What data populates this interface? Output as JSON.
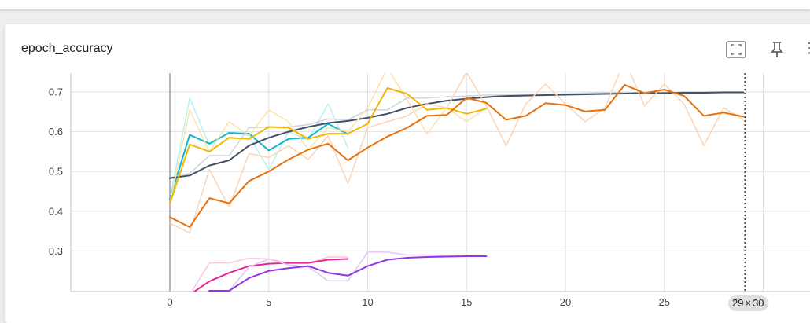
{
  "card": {
    "title": "epoch_accuracy",
    "fullscreen_icon": "fit-screen-icon",
    "pin_icon": "pin-icon",
    "more_icon": "more-vert-icon"
  },
  "hover": {
    "step": "29",
    "times": "×",
    "range_end": "30"
  },
  "chart_data": {
    "type": "line",
    "title": "epoch_accuracy",
    "xlabel": "",
    "ylabel": "",
    "xlim": [
      -5,
      31
    ],
    "ylim": [
      0.2,
      0.75
    ],
    "x_ticks": [
      0,
      5,
      10,
      15,
      20,
      25,
      30
    ],
    "y_ticks": [
      0.3,
      0.4,
      0.5,
      0.6,
      0.7
    ],
    "grid": true,
    "legend": "none",
    "hover_step": 29,
    "series": [
      {
        "color": "#b8f0f5",
        "width": 1.5,
        "x": [
          0,
          1,
          2,
          3,
          4,
          5,
          6,
          7,
          8,
          9
        ],
        "y": [
          0.43,
          0.685,
          0.565,
          0.6,
          0.59,
          0.505,
          0.6,
          0.58,
          0.67,
          0.56
        ]
      },
      {
        "color": "#12b5cb",
        "width": 2,
        "x": [
          0,
          1,
          2,
          3,
          4,
          5,
          6,
          7,
          8,
          9
        ],
        "y": [
          0.43,
          0.592,
          0.57,
          0.597,
          0.595,
          0.553,
          0.582,
          0.585,
          0.62,
          0.594
        ]
      },
      {
        "color": "#cfd4dc",
        "width": 1.5,
        "x": [
          0,
          1,
          2,
          3,
          4,
          5,
          6,
          7,
          8,
          9,
          10,
          11,
          12,
          13,
          14,
          15,
          16,
          17,
          18,
          19,
          20,
          21,
          22,
          23,
          24,
          25,
          26,
          27,
          28,
          29
        ],
        "y": [
          0.485,
          0.495,
          0.54,
          0.54,
          0.61,
          0.612,
          0.612,
          0.618,
          0.632,
          0.63,
          0.655,
          0.655,
          0.685,
          0.685,
          0.688,
          0.69,
          0.692,
          0.692,
          0.693,
          0.694,
          0.695,
          0.697,
          0.698,
          0.698,
          0.699,
          0.699,
          0.7,
          0.7,
          0.7,
          0.7
        ]
      },
      {
        "color": "#425066",
        "width": 2,
        "x": [
          0,
          1,
          2,
          3,
          4,
          5,
          6,
          7,
          8,
          9,
          10,
          11,
          12,
          13,
          14,
          15,
          16,
          17,
          18,
          19,
          20,
          21,
          22,
          23,
          24,
          25,
          26,
          27,
          28,
          29
        ],
        "y": [
          0.483,
          0.49,
          0.515,
          0.528,
          0.565,
          0.585,
          0.6,
          0.612,
          0.622,
          0.627,
          0.635,
          0.645,
          0.66,
          0.67,
          0.678,
          0.683,
          0.687,
          0.69,
          0.691,
          0.692,
          0.693,
          0.694,
          0.695,
          0.696,
          0.697,
          0.697,
          0.698,
          0.698,
          0.699,
          0.699
        ]
      },
      {
        "color": "#fde3a7",
        "width": 1.5,
        "x": [
          0,
          1,
          2,
          3,
          4,
          5,
          6,
          7,
          8,
          9,
          10,
          11,
          12,
          13,
          14,
          15,
          16
        ],
        "y": [
          0.42,
          0.655,
          0.55,
          0.625,
          0.59,
          0.655,
          0.625,
          0.555,
          0.61,
          0.6,
          0.66,
          0.76,
          0.68,
          0.595,
          0.66,
          0.625,
          0.66
        ]
      },
      {
        "color": "#f2b705",
        "width": 2,
        "x": [
          0,
          1,
          2,
          3,
          4,
          5,
          6,
          7,
          8,
          9,
          10,
          11,
          12,
          13,
          14,
          15,
          16
        ],
        "y": [
          0.42,
          0.568,
          0.55,
          0.585,
          0.582,
          0.612,
          0.61,
          0.582,
          0.595,
          0.595,
          0.62,
          0.71,
          0.695,
          0.655,
          0.66,
          0.645,
          0.658
        ]
      },
      {
        "color": "#fbd5b5",
        "width": 1.5,
        "x": [
          0,
          1,
          2,
          3,
          4,
          5,
          6,
          7,
          8,
          9,
          10,
          11,
          12,
          13,
          14,
          15,
          16,
          17,
          18,
          19,
          20,
          21,
          22,
          23,
          24,
          25,
          26,
          27,
          28,
          29
        ],
        "y": [
          0.37,
          0.345,
          0.505,
          0.41,
          0.545,
          0.535,
          0.565,
          0.53,
          0.59,
          0.47,
          0.61,
          0.625,
          0.64,
          0.67,
          0.66,
          0.75,
          0.665,
          0.565,
          0.67,
          0.72,
          0.67,
          0.625,
          0.66,
          0.78,
          0.665,
          0.72,
          0.67,
          0.565,
          0.66,
          0.63
        ]
      },
      {
        "color": "#e8710a",
        "width": 2,
        "x": [
          0,
          1,
          2,
          3,
          4,
          5,
          6,
          7,
          8,
          9,
          10,
          11,
          12,
          13,
          14,
          15,
          16,
          17,
          18,
          19,
          20,
          21,
          22,
          23,
          24,
          25,
          26,
          27,
          28,
          29
        ],
        "y": [
          0.385,
          0.36,
          0.433,
          0.42,
          0.476,
          0.5,
          0.53,
          0.555,
          0.57,
          0.528,
          0.56,
          0.588,
          0.61,
          0.64,
          0.642,
          0.685,
          0.673,
          0.63,
          0.64,
          0.672,
          0.667,
          0.651,
          0.655,
          0.718,
          0.697,
          0.706,
          0.69,
          0.64,
          0.648,
          0.638
        ]
      },
      {
        "color": "#f8c9e4",
        "width": 1.5,
        "x": [
          1,
          2,
          3,
          4,
          5,
          6,
          7,
          8,
          9
        ],
        "y": [
          0.19,
          0.27,
          0.27,
          0.282,
          0.28,
          0.27,
          0.27,
          0.285,
          0.285
        ]
      },
      {
        "color": "#e52592",
        "width": 2,
        "x": [
          1,
          2,
          3,
          4,
          5,
          6,
          7,
          8,
          9
        ],
        "y": [
          0.19,
          0.224,
          0.245,
          0.262,
          0.268,
          0.27,
          0.27,
          0.278,
          0.28
        ]
      },
      {
        "color": "#e0c7f5",
        "width": 1.5,
        "x": [
          1,
          2,
          3,
          4,
          5,
          6,
          7,
          8,
          9,
          10,
          11,
          12,
          13,
          14,
          15,
          16
        ],
        "y": [
          0.15,
          0.2,
          0.2,
          0.26,
          0.28,
          0.265,
          0.26,
          0.225,
          0.225,
          0.297,
          0.297,
          0.29,
          0.29,
          0.288,
          0.288,
          0.286
        ]
      },
      {
        "color": "#9334e6",
        "width": 2,
        "x": [
          1,
          2,
          3,
          4,
          5,
          6,
          7,
          8,
          9,
          10,
          11,
          12,
          13,
          14,
          15,
          16
        ],
        "y": [
          0.15,
          0.2,
          0.2,
          0.232,
          0.25,
          0.257,
          0.262,
          0.245,
          0.238,
          0.262,
          0.278,
          0.283,
          0.285,
          0.286,
          0.287,
          0.287
        ]
      }
    ]
  }
}
